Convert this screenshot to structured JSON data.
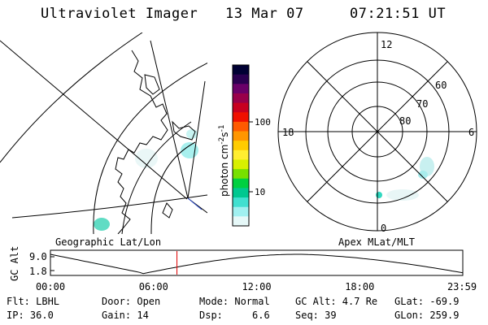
{
  "header": {
    "title": "Ultraviolet Imager",
    "date": "13 Mar 07",
    "time": "07:21:51 UT"
  },
  "left_panel": {
    "caption": "Geographic Lat/Lon"
  },
  "right_panel": {
    "caption": "Apex MLat/MLT",
    "mlt_labels": {
      "top": "12",
      "bottom": "0",
      "left": "18",
      "right": "6"
    },
    "lat_labels": [
      "60",
      "70",
      "80"
    ]
  },
  "colorbar": {
    "unit": "photon cm",
    "unit_exp1": "-2",
    "unit_mid": "s",
    "unit_exp2": "-1",
    "tick_100": "100",
    "tick_10": "10",
    "colors": [
      "#000033",
      "#2a0050",
      "#6a0068",
      "#99004a",
      "#c80020",
      "#f01000",
      "#ff5a00",
      "#ff9600",
      "#ffcc00",
      "#ffee30",
      "#d8f000",
      "#78e000",
      "#00d040",
      "#00c890",
      "#40e0d0",
      "#a0f0f0",
      "#e6f8f8"
    ]
  },
  "timeline": {
    "ylabel": "GC Alt",
    "ytick_top": "9.0",
    "ytick_bottom": "1.8",
    "xticks": [
      "00:00",
      "06:00",
      "12:00",
      "18:00",
      "23:59"
    ],
    "current_fraction": 0.3068
  },
  "info": {
    "flt": "Flt: LBHL",
    "ip": "IP: 36.0",
    "door": "Door: Open",
    "gain": "Gain: 14",
    "mode": "Mode: Normal",
    "dsp": "Dsp:     6.6",
    "gcalt": "GC Alt: 4.7 Re",
    "seq": "Seq: 39",
    "glat": "GLat: -69.9",
    "glon": "GLon: 259.9"
  }
}
